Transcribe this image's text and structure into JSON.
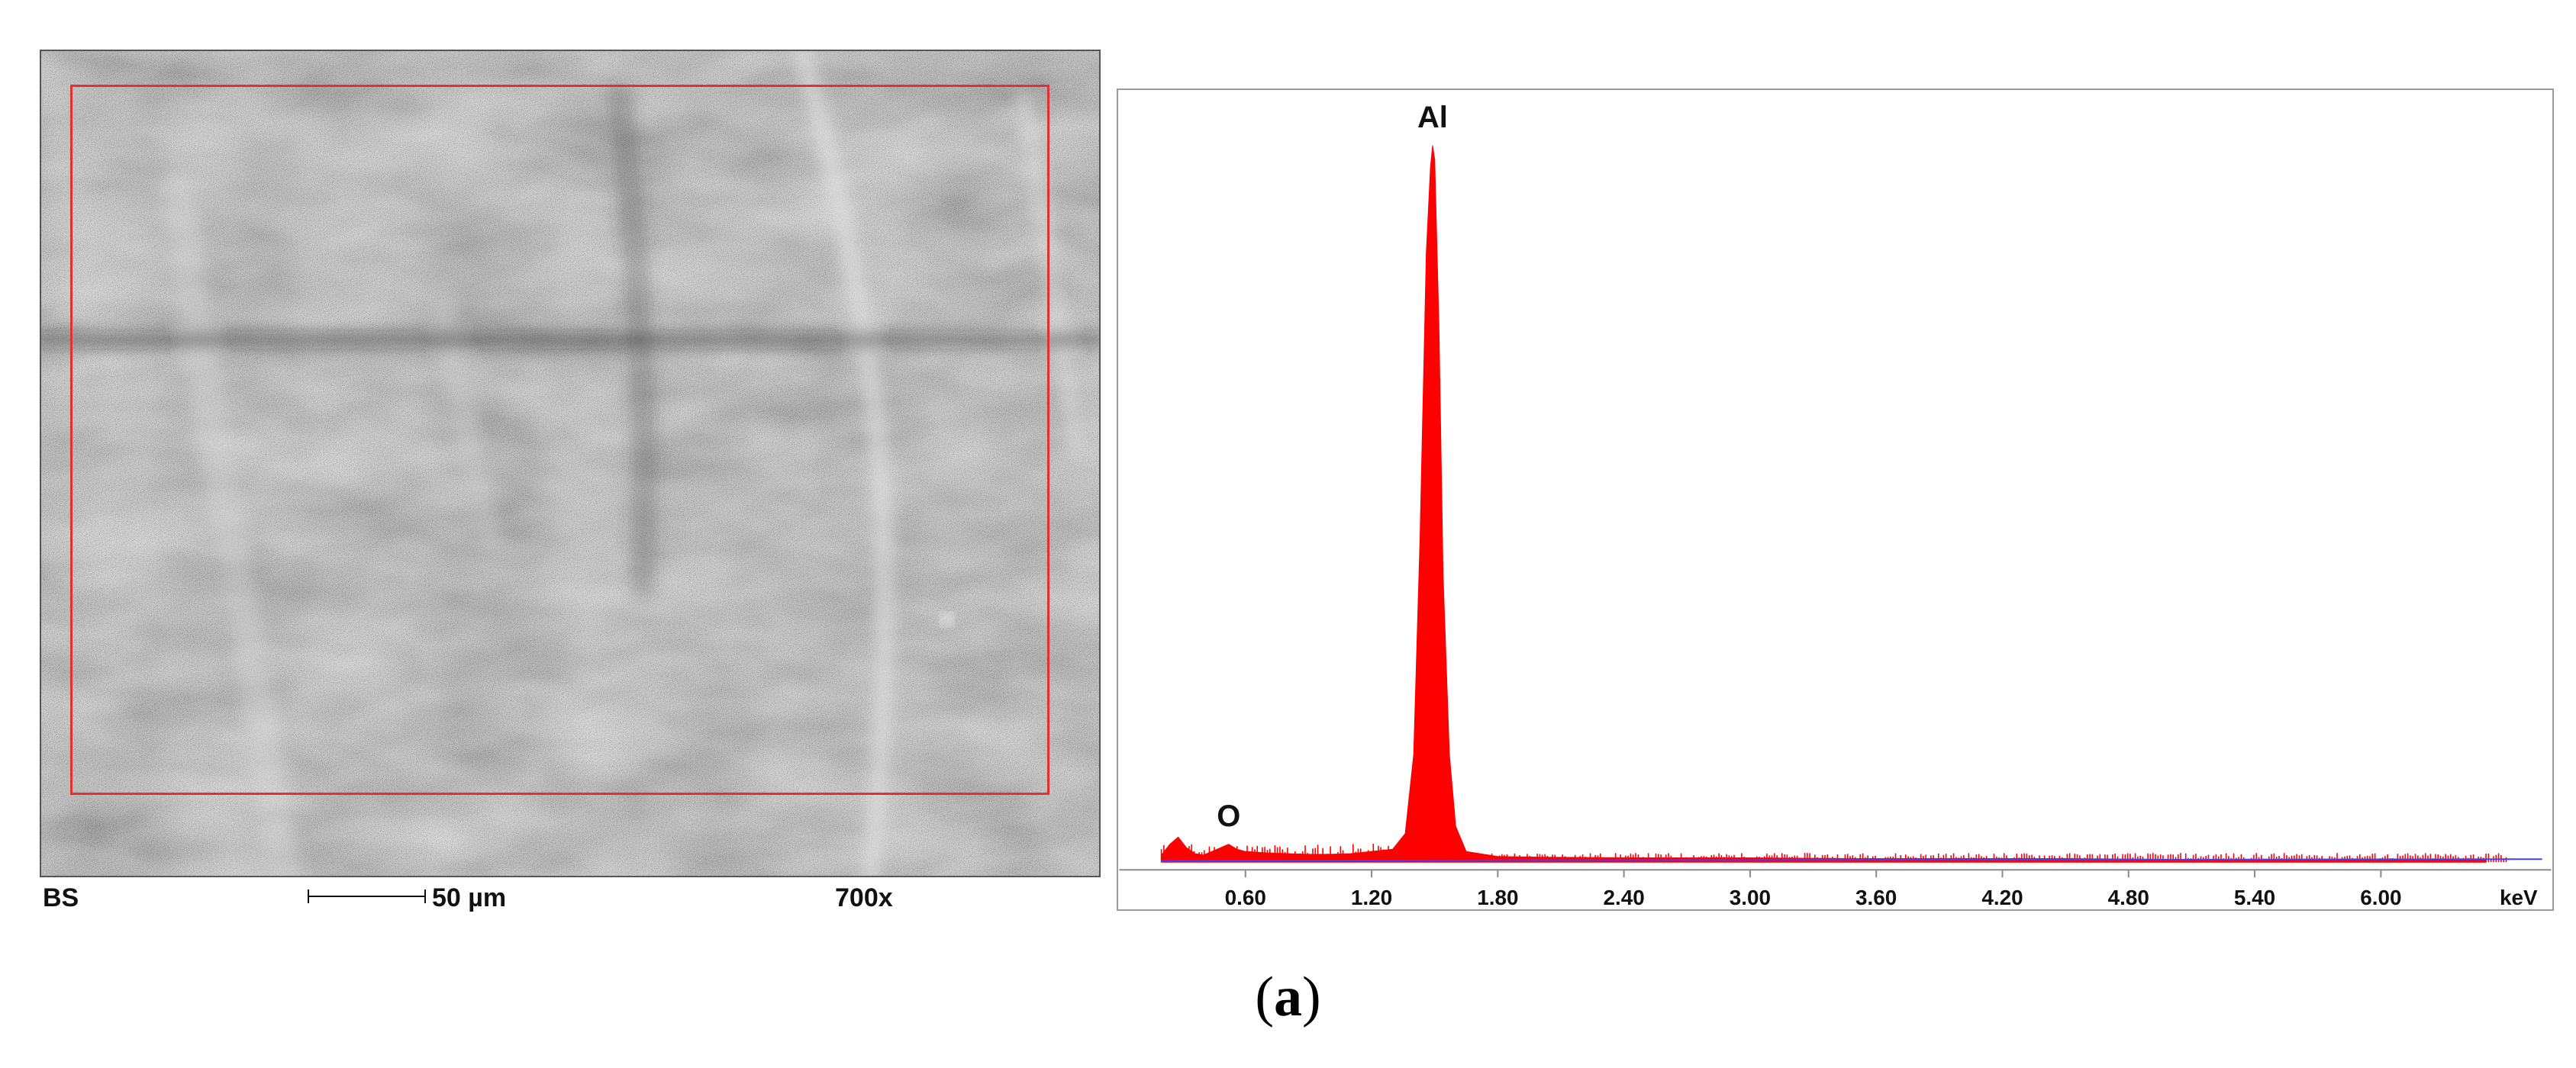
{
  "sem": {
    "mode_label": "BS",
    "scale_label": "50 µm",
    "magnification": "700x"
  },
  "caption": {
    "open": "(",
    "letter": "a",
    "close": ")"
  },
  "colors": {
    "spectrum": "#ff0000",
    "background_trace": "#4040ff",
    "roi": "#e33030"
  },
  "chart_data": {
    "type": "area",
    "xlabel": "keV",
    "xlim": [
      0,
      6.6
    ],
    "ylim": [
      0,
      100
    ],
    "x_ticks": [
      "0.60",
      "1.20",
      "1.80",
      "2.40",
      "3.00",
      "3.60",
      "4.20",
      "4.80",
      "5.40",
      "6.00"
    ],
    "x_tick_values": [
      0.6,
      1.2,
      1.8,
      2.4,
      3.0,
      3.6,
      4.2,
      4.8,
      5.4,
      6.0
    ],
    "peaks": [
      {
        "label": "O",
        "energy": 0.52,
        "height": 2.5
      },
      {
        "label": "Al",
        "energy": 1.49,
        "height": 100
      }
    ],
    "series": [
      {
        "x": [
          0.2,
          0.24,
          0.28,
          0.32,
          0.36,
          0.4,
          0.44,
          0.48,
          0.52,
          0.56,
          0.6,
          0.7,
          0.8,
          0.9,
          1.0,
          1.1,
          1.2,
          1.3,
          1.36,
          1.4,
          1.43,
          1.46,
          1.48,
          1.49,
          1.5,
          1.52,
          1.54,
          1.57,
          1.6,
          1.65,
          1.8,
          2.0,
          2.5,
          3.0,
          3.5,
          4.0,
          4.5,
          5.0,
          5.5,
          6.0,
          6.5
        ],
        "y": [
          1.0,
          2.5,
          3.5,
          2.0,
          1.2,
          1.0,
          1.5,
          2.0,
          2.5,
          1.8,
          1.5,
          1.3,
          1.2,
          1.1,
          1.1,
          1.2,
          1.5,
          1.8,
          4.0,
          15.0,
          45.0,
          85.0,
          97.0,
          100.0,
          98.0,
          75.0,
          40.0,
          15.0,
          5.0,
          1.5,
          0.8,
          0.7,
          0.6,
          0.6,
          0.5,
          0.5,
          0.5,
          0.4,
          0.4,
          0.3,
          0.3
        ]
      }
    ]
  }
}
